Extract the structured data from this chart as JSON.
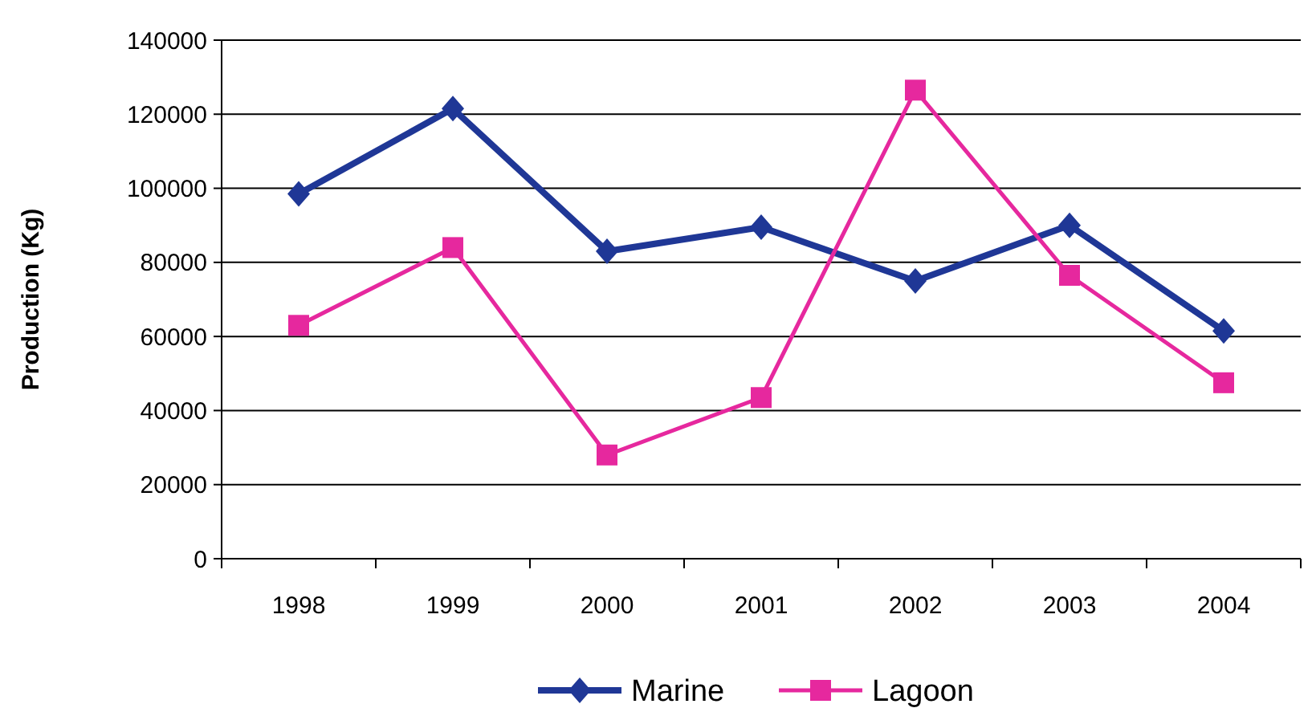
{
  "chart_data": {
    "type": "line",
    "ylabel": "Production (Kg)",
    "categories": [
      "1998",
      "1999",
      "2000",
      "2001",
      "2002",
      "2003",
      "2004"
    ],
    "series": [
      {
        "name": "Marine",
        "color": "#1f3796",
        "marker": "diamond",
        "values": [
          98500,
          121500,
          83000,
          89500,
          75000,
          90000,
          61500
        ]
      },
      {
        "name": "Lagoon",
        "color": "#e6289e",
        "marker": "square",
        "values": [
          63000,
          84000,
          28000,
          43500,
          126500,
          76500,
          47500
        ]
      }
    ],
    "ylim": [
      0,
      140000
    ],
    "yticks": [
      0,
      20000,
      40000,
      60000,
      80000,
      100000,
      120000,
      140000
    ],
    "grid": "y",
    "legend": "bottom"
  }
}
